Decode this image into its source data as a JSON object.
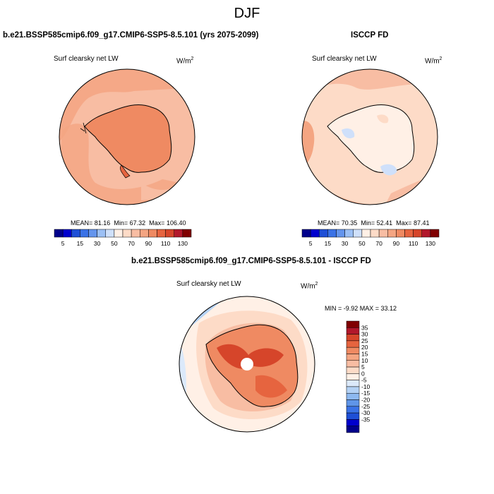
{
  "figure": {
    "title": "DJF"
  },
  "panels": [
    {
      "title": "b.e21.BSSP585cmip6.f09_g17.CMIP6-SSP5-8.5.101 (yrs 2075-2099)",
      "field": "Surf clearsky net LW",
      "units_base": "W/m",
      "units_exp": "2",
      "stats": {
        "mean_label": "MEAN=",
        "mean": "81.16",
        "min_label": "Min=",
        "min": "67.32",
        "max_label": "Max=",
        "max": "106.40"
      },
      "colorbar": {
        "colors": [
          "#00008b",
          "#0000cd",
          "#1e4fd6",
          "#3a72e6",
          "#6495ed",
          "#9cc0f5",
          "#cfe0fa",
          "#fff0e6",
          "#fddbc7",
          "#f8bda3",
          "#f4a582",
          "#ef8a62",
          "#e6643f",
          "#d6452a",
          "#b2182b",
          "#800000"
        ],
        "labels": [
          "5",
          "15",
          "30",
          "50",
          "70",
          "90",
          "110",
          "130"
        ]
      }
    },
    {
      "title": "ISCCP FD",
      "field": "Surf clearsky net LW",
      "units_base": "W/m",
      "units_exp": "2",
      "stats": {
        "mean_label": "MEAN=",
        "mean": "70.35",
        "min_label": "Min=",
        "min": "52.41",
        "max_label": "Max=",
        "max": "87.41"
      },
      "colorbar": {
        "colors": [
          "#00008b",
          "#0000cd",
          "#1e4fd6",
          "#3a72e6",
          "#6495ed",
          "#9cc0f5",
          "#cfe0fa",
          "#fff0e6",
          "#fddbc7",
          "#f8bda3",
          "#f4a582",
          "#ef8a62",
          "#e6643f",
          "#d6452a",
          "#b2182b",
          "#800000"
        ],
        "labels": [
          "5",
          "15",
          "30",
          "50",
          "70",
          "90",
          "110",
          "130"
        ]
      }
    },
    {
      "title": "b.e21.BSSP585cmip6.f09_g17.CMIP6-SSP5-8.5.101 - ISCCP FD",
      "field": "Surf clearsky net LW",
      "units_base": "W/m",
      "units_exp": "2",
      "stats_text": "MIN = -9.92 MAX = 33.12",
      "colorbar": {
        "colors": [
          "#800000",
          "#b2182b",
          "#d6452a",
          "#e6643f",
          "#ef8a62",
          "#f4a582",
          "#f8bda3",
          "#fddbc7",
          "#fff0e6",
          "#dbe9fa",
          "#b4d2f5",
          "#8db9f0",
          "#5f95e8",
          "#3a72e6",
          "#1e4fd6",
          "#0000cd",
          "#00008b"
        ],
        "labels": [
          "35",
          "30",
          "25",
          "20",
          "15",
          "10",
          "5",
          "0",
          "-5",
          "-10",
          "-15",
          "-20",
          "-25",
          "-30",
          "-35"
        ]
      }
    }
  ]
}
